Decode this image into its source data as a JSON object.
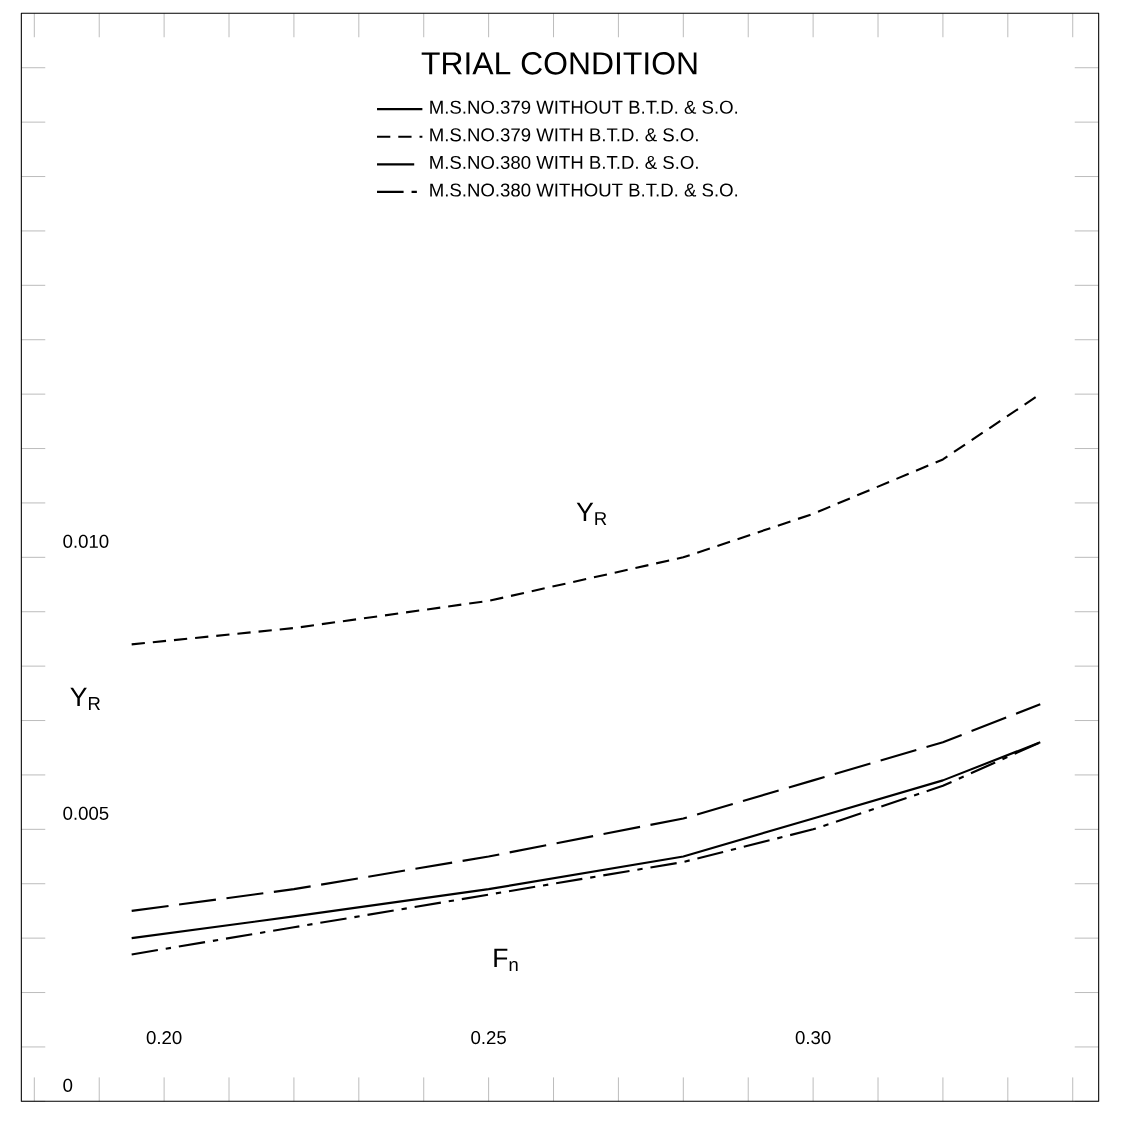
{
  "chart_data": {
    "type": "line",
    "legend_title": "TRIAL CONDITION",
    "xlabel": "F$_{n}$",
    "ylabel": "Υ$_{R}$",
    "annotations": [
      "Υ$_{R}$"
    ],
    "xlim": [
      0.178,
      0.344
    ],
    "ylim": [
      0,
      0.02
    ],
    "xticks": [
      {
        "value": 0.18,
        "label": null
      },
      {
        "value": 0.19,
        "label": null
      },
      {
        "value": 0.2,
        "label": "0.20"
      },
      {
        "value": 0.21,
        "label": null
      },
      {
        "value": 0.22,
        "label": null
      },
      {
        "value": 0.23,
        "label": null
      },
      {
        "value": 0.24,
        "label": null
      },
      {
        "value": 0.25,
        "label": "0.25"
      },
      {
        "value": 0.26,
        "label": null
      },
      {
        "value": 0.27,
        "label": null
      },
      {
        "value": 0.28,
        "label": null
      },
      {
        "value": 0.29,
        "label": null
      },
      {
        "value": 0.3,
        "label": "0.30"
      },
      {
        "value": 0.31,
        "label": null
      },
      {
        "value": 0.32,
        "label": null
      },
      {
        "value": 0.33,
        "label": null
      },
      {
        "value": 0.34,
        "label": null
      }
    ],
    "yticks": [
      0,
      {
        "value": 0.001,
        "label": null
      },
      {
        "value": 0.002,
        "label": null
      },
      {
        "value": 0.003,
        "label": null
      },
      {
        "value": 0.004,
        "label": null
      },
      {
        "value": 0.005,
        "label": "0.005"
      },
      {
        "value": 0.006,
        "label": null
      },
      {
        "value": 0.007,
        "label": null
      },
      {
        "value": 0.008,
        "label": null
      },
      {
        "value": 0.009,
        "label": null
      },
      {
        "value": 0.01,
        "label": "0.010"
      },
      {
        "value": 0.011,
        "label": null
      },
      {
        "value": 0.012,
        "label": null
      },
      {
        "value": 0.013,
        "label": null
      },
      {
        "value": 0.014,
        "label": null
      },
      {
        "value": 0.015,
        "label": null
      },
      {
        "value": 0.016,
        "label": null
      },
      {
        "value": 0.017,
        "label": null
      },
      {
        "value": 0.018,
        "label": null
      },
      {
        "value": 0.019,
        "label": null
      }
    ],
    "legend": "top",
    "x": [
      0.195,
      0.22,
      0.25,
      0.28,
      0.3,
      0.32,
      0.335
    ],
    "series": [
      {
        "name": "M.S.NO.379  WITHOUT B.T.D. & S.O.",
        "color": "#000000",
        "line_style": "solid",
        "values": [
          0.003,
          0.0034,
          0.0039,
          0.0045,
          0.0052,
          0.0059,
          0.0066
        ]
      },
      {
        "name": "M.S.NO.379  WITH B.T.D. & S.O.",
        "color": "#000000",
        "line_style": "dashed",
        "values": [
          0.0084,
          0.0087,
          0.0092,
          0.01,
          0.0108,
          0.0118,
          0.013
        ]
      },
      {
        "name": "M.S.NO.380  WITH B.T.D. & S.O.",
        "color": "#000000",
        "line_style": "long dashed",
        "values": [
          0.0035,
          0.0039,
          0.0045,
          0.0052,
          0.0059,
          0.0066,
          0.0073
        ]
      },
      {
        "name": "M.S.NO.380  WITHOUT B.T.D. & S.O.",
        "color": "#000000",
        "line_style": "dash dot",
        "values": [
          0.0027,
          0.0032,
          0.0038,
          0.0044,
          0.005,
          0.0058,
          0.0066
        ]
      }
    ]
  }
}
